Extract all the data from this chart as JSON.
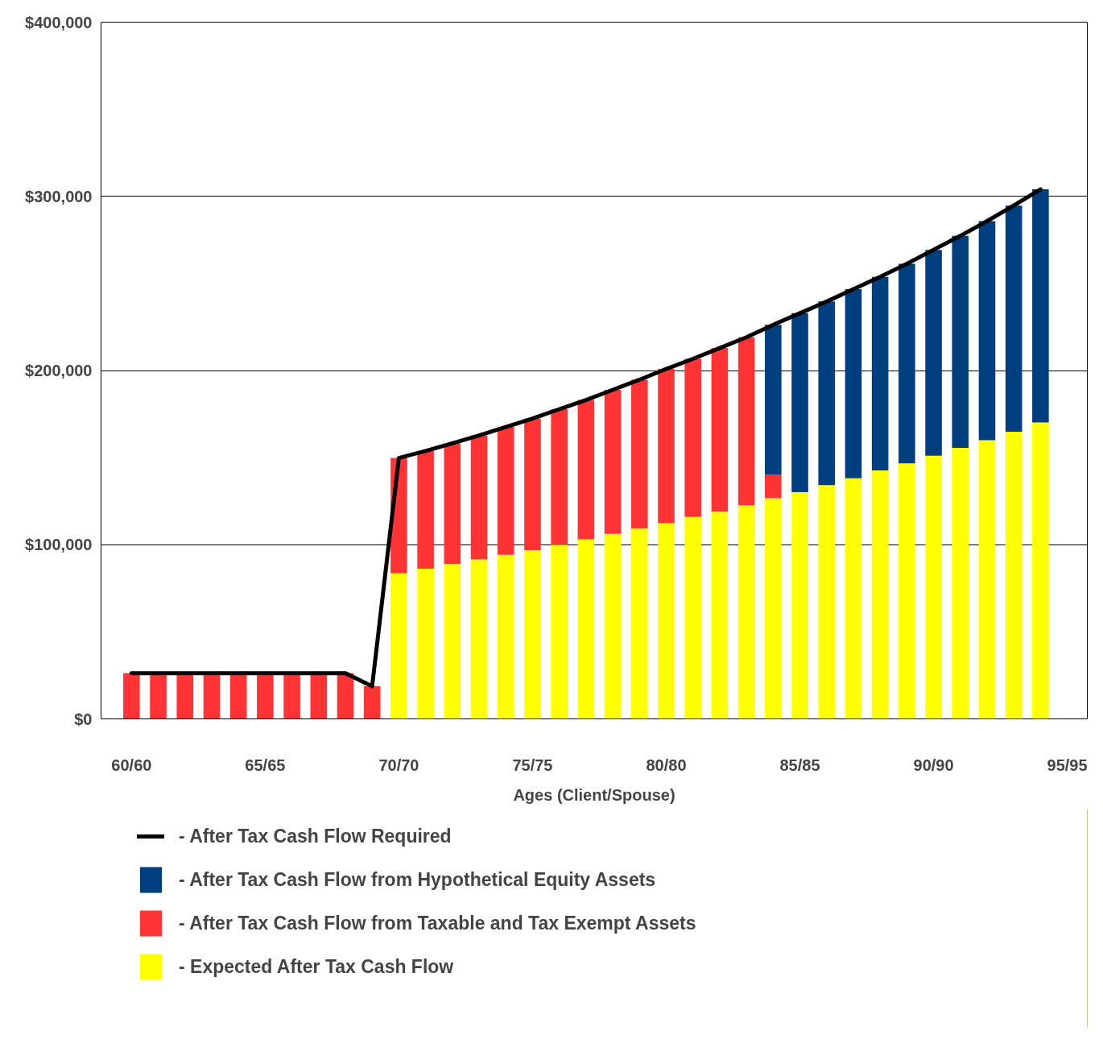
{
  "chart_data": {
    "type": "bar",
    "stacked": true,
    "xlabel": "Ages (Client/Spouse)",
    "categories": [
      "60/60",
      null,
      null,
      null,
      null,
      "65/65",
      null,
      null,
      null,
      null,
      "70/70",
      null,
      null,
      null,
      null,
      "75/75",
      null,
      null,
      null,
      null,
      "80/80",
      null,
      null,
      null,
      null,
      "85/85",
      null,
      null,
      null,
      null,
      "90/90",
      null,
      null,
      null,
      null,
      "95/95"
    ],
    "series": [
      {
        "name": "- Expected After Tax Cash Flow",
        "color": "#ffff00",
        "values": [
          null,
          null,
          null,
          null,
          null,
          null,
          null,
          null,
          null,
          null,
          83600,
          86200,
          88900,
          91600,
          94200,
          96900,
          100000,
          103100,
          106200,
          109300,
          112400,
          116000,
          119100,
          122700,
          126700,
          130200,
          134200,
          138200,
          142700,
          146700,
          151100,
          155600,
          160000,
          164900,
          170200,
          null
        ]
      },
      {
        "name": "- After Tax Cash Flow from Taxable and Tax Exempt Assets",
        "color": "#ff3333",
        "values": [
          26200,
          26200,
          26200,
          26200,
          26200,
          26200,
          26200,
          26200,
          26200,
          18700,
          66200,
          67600,
          69300,
          71100,
          73400,
          75500,
          77800,
          80000,
          82700,
          85400,
          88500,
          90700,
          93800,
          96400,
          13700,
          null,
          null,
          null,
          null,
          null,
          null,
          null,
          null,
          null,
          null,
          null
        ]
      },
      {
        "name": "- After Tax Cash Flow from Hypothetical Equity Assets",
        "color": "#003f7f",
        "values": [
          null,
          null,
          null,
          null,
          null,
          null,
          null,
          null,
          null,
          null,
          null,
          null,
          null,
          null,
          null,
          null,
          null,
          null,
          null,
          null,
          null,
          null,
          null,
          null,
          85800,
          102700,
          105400,
          108500,
          111100,
          114600,
          118200,
          121700,
          125800,
          129800,
          133800,
          null
        ]
      },
      {
        "name": "- After Tax Cash Flow Required",
        "color": "#000000",
        "type": "line",
        "values": [
          26200,
          26200,
          26200,
          26200,
          26200,
          26200,
          26200,
          26200,
          26200,
          18700,
          149800,
          153800,
          158200,
          162700,
          167600,
          172400,
          177800,
          183100,
          188900,
          194700,
          200900,
          206700,
          212900,
          219100,
          226200,
          232900,
          239600,
          246700,
          253800,
          261300,
          269300,
          277300,
          285800,
          294700,
          304000,
          null
        ]
      }
    ],
    "ylim": [
      0,
      400000
    ],
    "yticks": [
      {
        "value": 0,
        "label": "$0"
      },
      {
        "value": 100000,
        "label": "$100,000"
      },
      {
        "value": 200000,
        "label": "$200,000"
      },
      {
        "value": 300000,
        "label": "$300,000"
      },
      {
        "value": 400000,
        "label": "$400,000"
      }
    ],
    "grid": "y",
    "legend": "bottom"
  }
}
